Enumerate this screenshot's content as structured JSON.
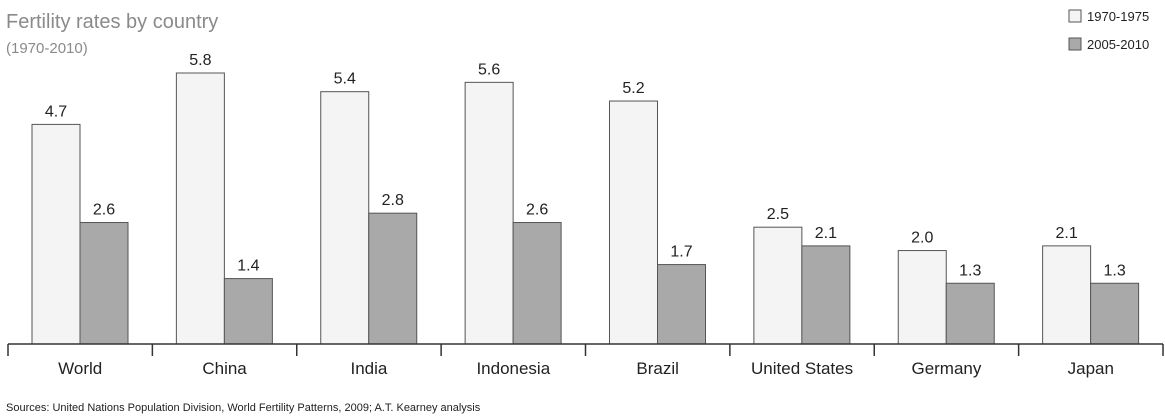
{
  "chart_data": {
    "type": "bar",
    "title": "Fertility rates by country",
    "subtitle": "(1970-2010)",
    "categories": [
      "World",
      "China",
      "India",
      "Indonesia",
      "Brazil",
      "United States",
      "Germany",
      "Japan"
    ],
    "series": [
      {
        "name": "1970-1975",
        "values": [
          4.7,
          5.8,
          5.4,
          5.6,
          5.2,
          2.5,
          2.0,
          2.1
        ],
        "labels": [
          "4.7",
          "5.8",
          "5.4",
          "5.6",
          "5.2",
          "2.5",
          "2.0",
          "2.1"
        ],
        "color": "#f4f4f4",
        "edge_color": "#555555"
      },
      {
        "name": "2005-2010",
        "values": [
          2.6,
          1.4,
          2.8,
          2.6,
          1.7,
          2.1,
          1.3,
          1.3
        ],
        "labels": [
          "2.6",
          "1.4",
          "2.8",
          "2.6",
          "1.7",
          "2.1",
          "1.3",
          "1.3"
        ],
        "color": "#a9a9a9",
        "edge_color": "#555555"
      }
    ],
    "ylim": [
      0,
      5.8
    ],
    "xlabel": "",
    "ylabel": "",
    "grid": false,
    "legend_position": "top-right",
    "source": "Sources: United Nations Population Division, World Fertility Patterns, 2009; A.T. Kearney analysis"
  }
}
